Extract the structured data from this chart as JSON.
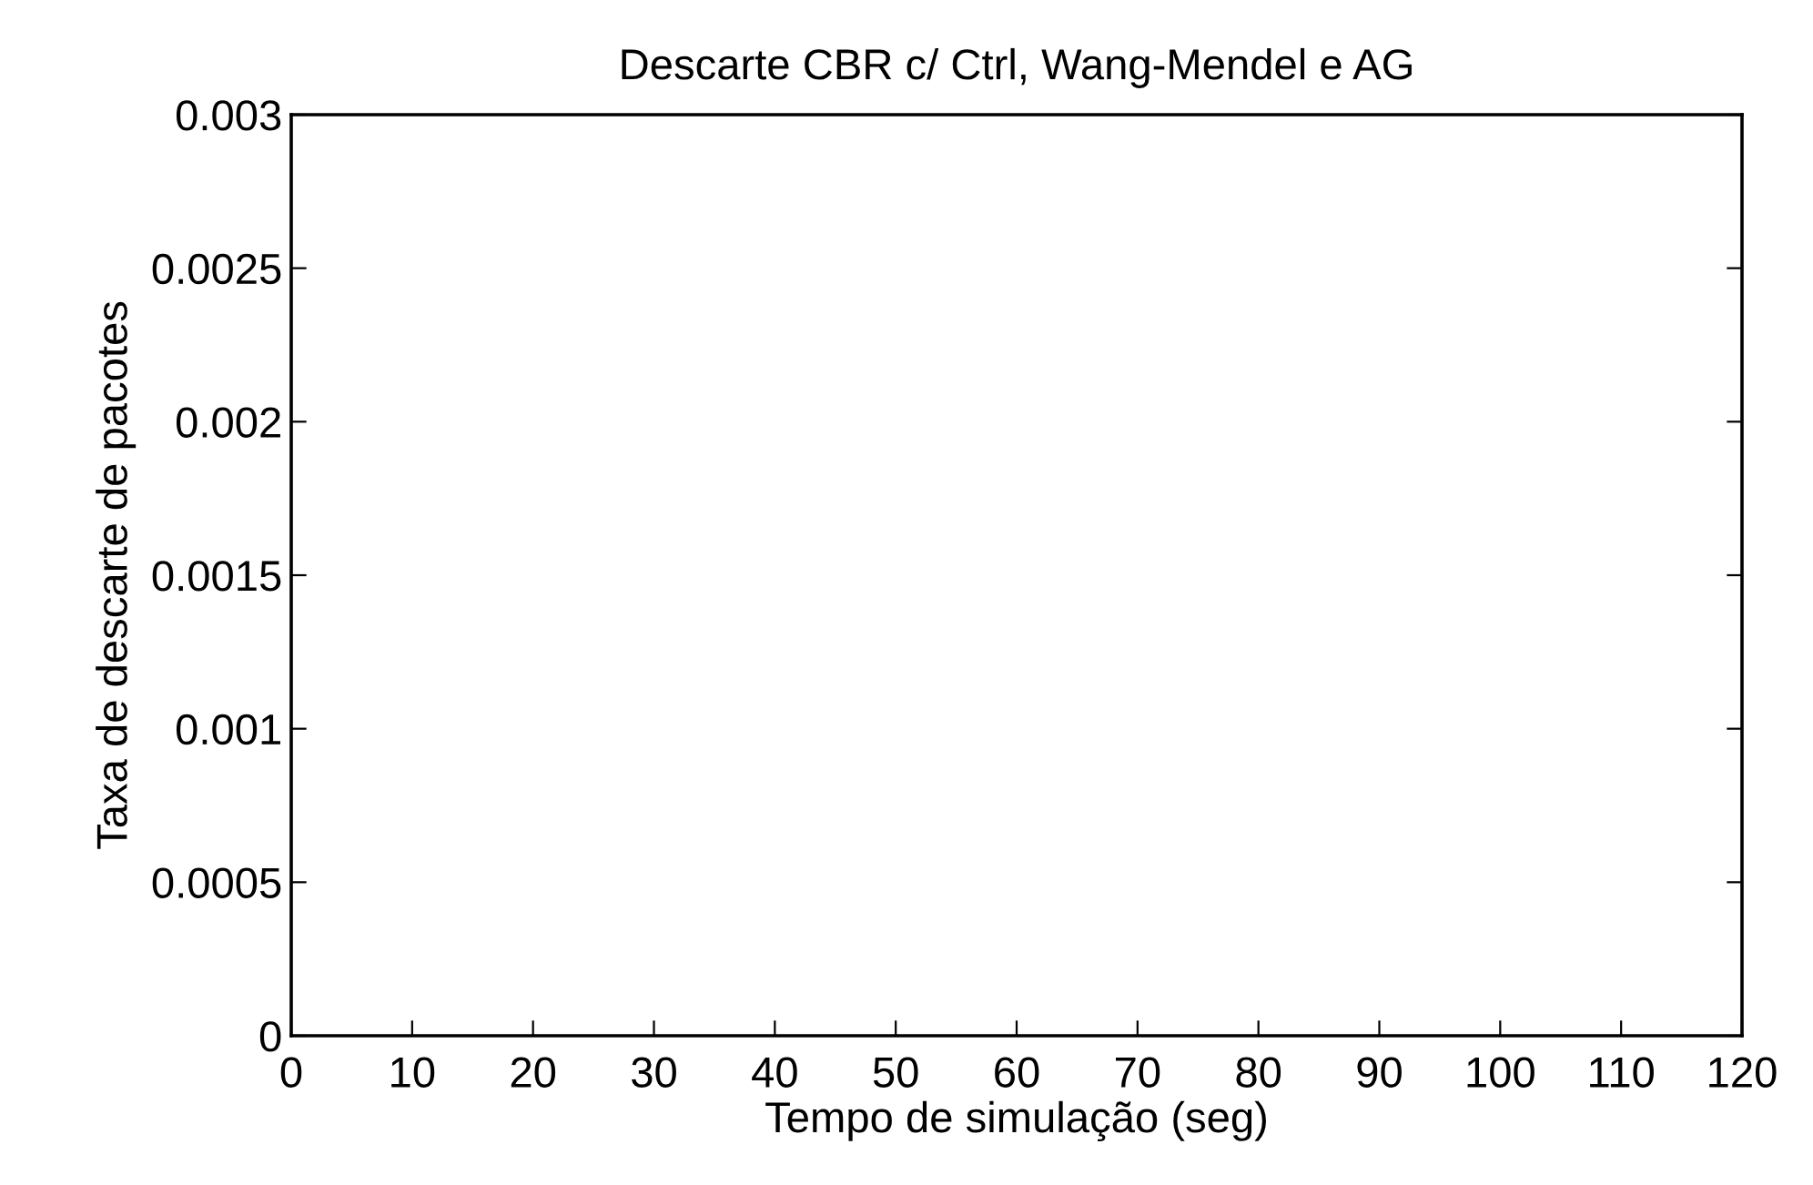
{
  "chart_data": {
    "type": "line",
    "title": "Descarte CBR c/ Ctrl, Wang-Mendel e AG",
    "xlabel": "Tempo de simulação (seg)",
    "ylabel": "Taxa de descarte de pacotes",
    "xlim": [
      0,
      120
    ],
    "xticks": [
      0,
      10,
      20,
      30,
      40,
      50,
      60,
      70,
      80,
      90,
      100,
      110,
      120
    ],
    "ylim": [
      0,
      0.003
    ],
    "yticks": [
      {
        "value": 0,
        "label": "0"
      },
      {
        "value": 0.0005,
        "label": "0.0005"
      },
      {
        "value": 0.001,
        "label": "0.001"
      },
      {
        "value": 0.0015,
        "label": "0.0015"
      },
      {
        "value": 0.002,
        "label": "0.002"
      },
      {
        "value": 0.0025,
        "label": "0.0025"
      },
      {
        "value": 0.003,
        "label": "0.003"
      }
    ],
    "grid": false
  }
}
